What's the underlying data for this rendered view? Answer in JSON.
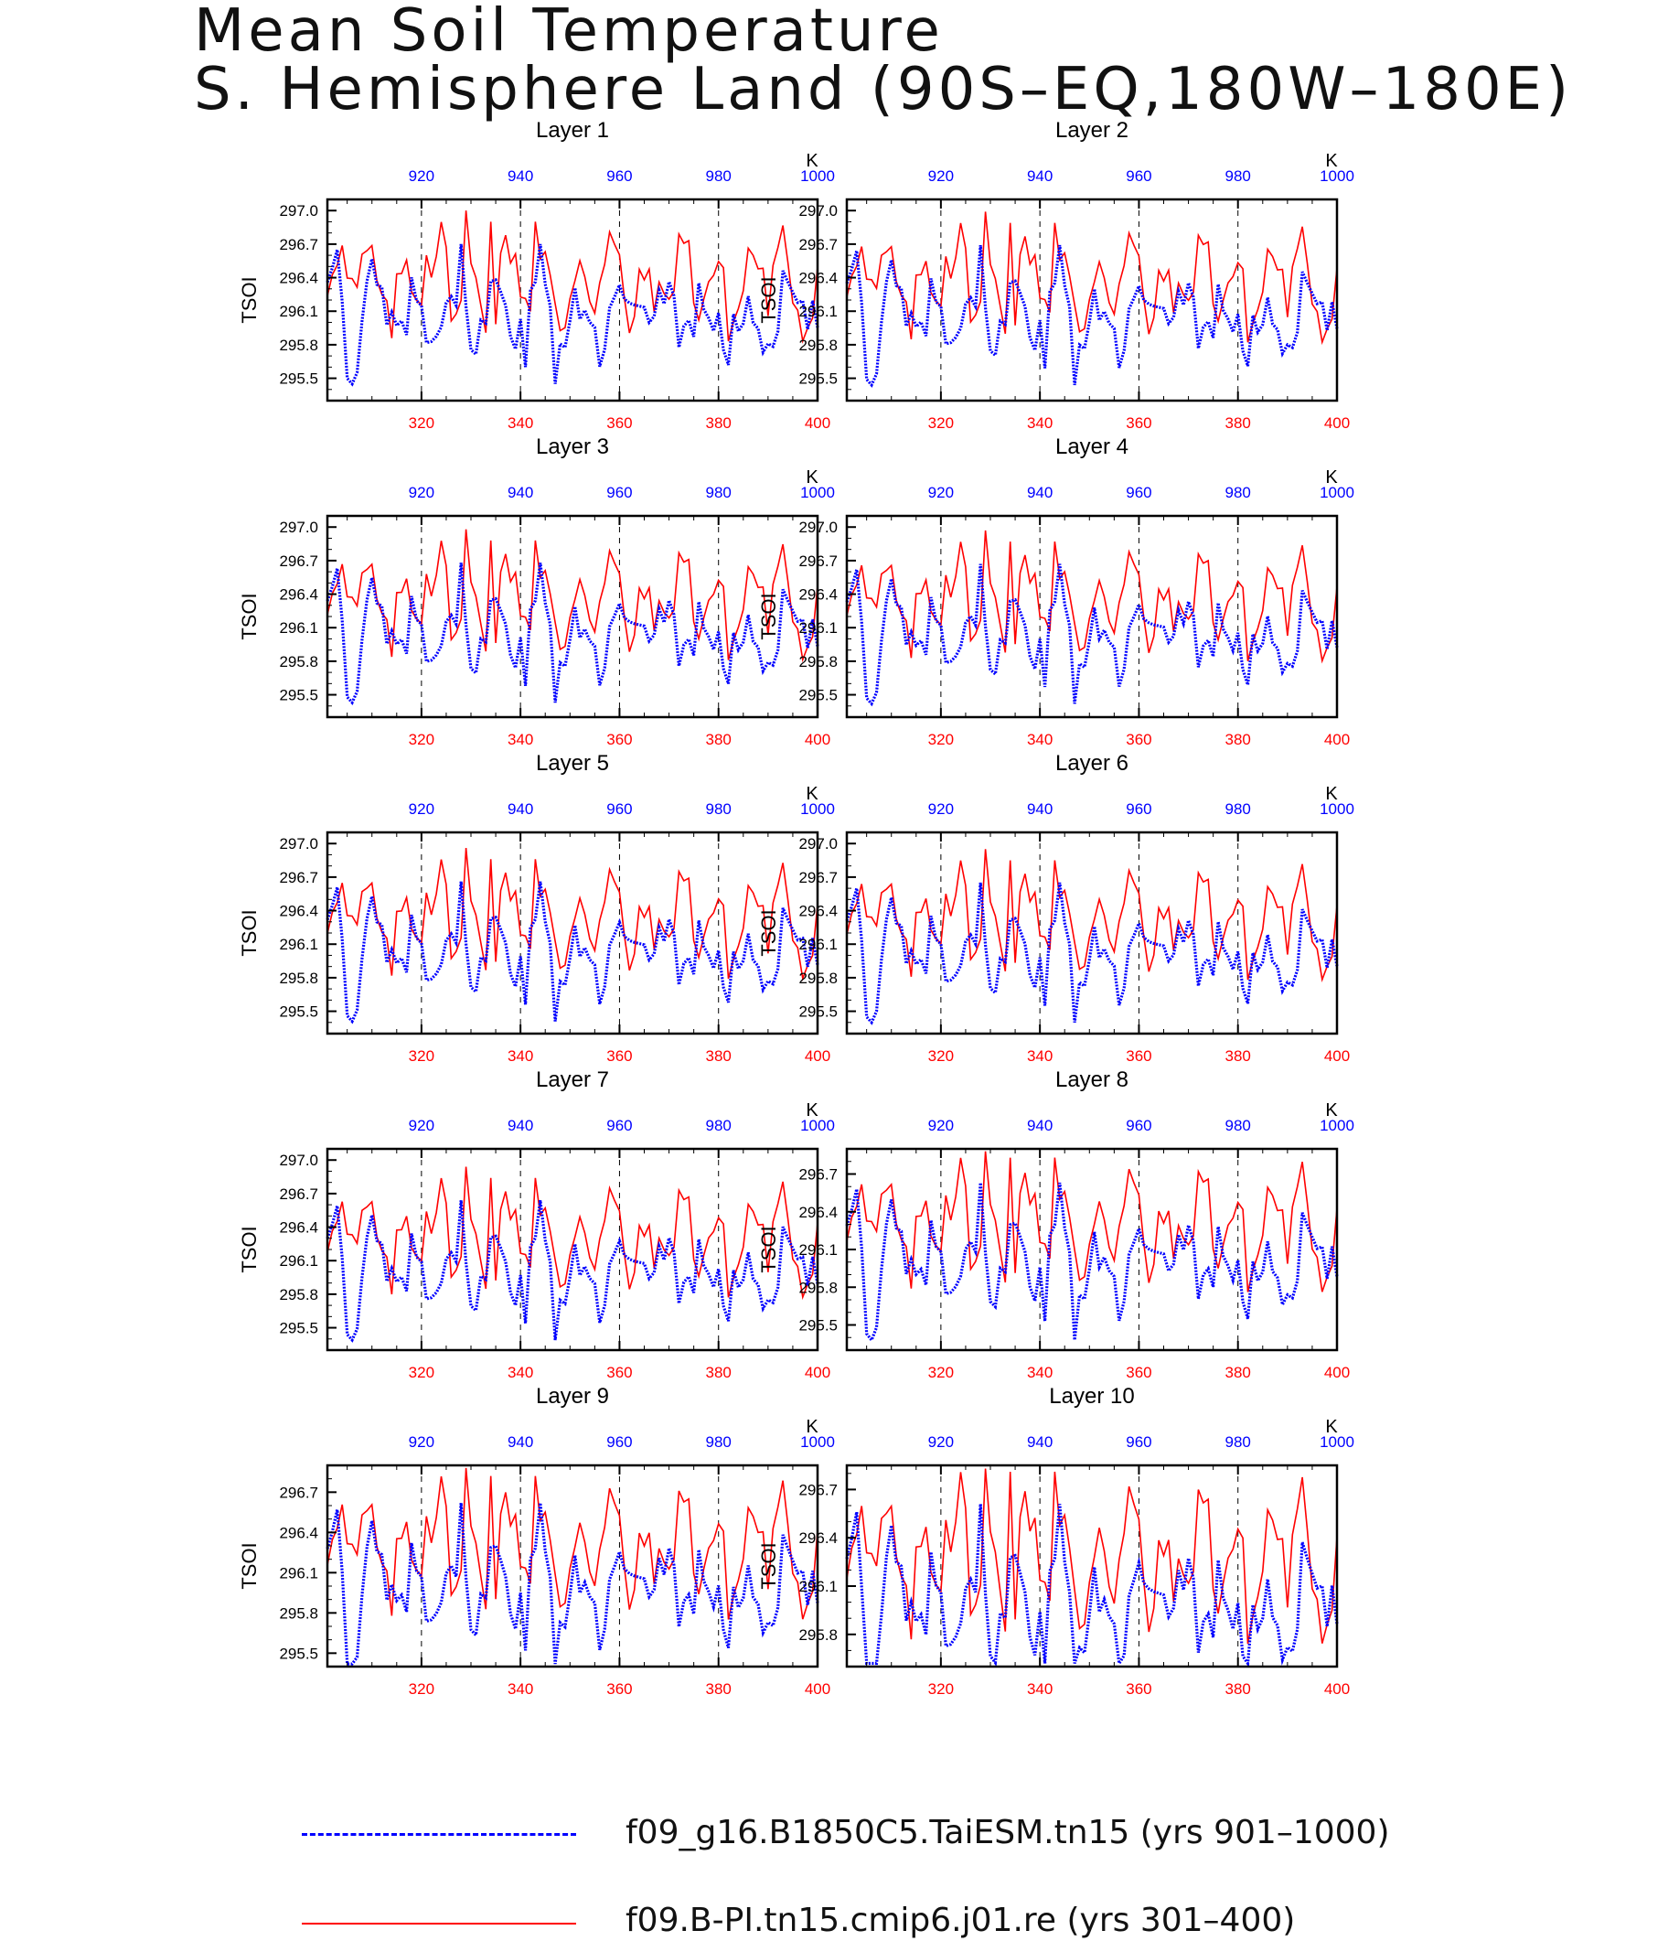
{
  "title": {
    "line1": "Mean Soil Temperature",
    "line2": "S. Hemisphere Land (90S–EQ,180W–180E)"
  },
  "legend": [
    {
      "label": "f09_g16.B1850C5.TaiESM.tn15 (yrs 901–1000)",
      "color": "#0000ff",
      "style": "dashed"
    },
    {
      "label": "f09.B-PI.tn15.cmip6.j01.re (yrs 301–400)",
      "color": "#ff0000",
      "style": "solid"
    }
  ],
  "chart_data": [
    {
      "type": "line",
      "title": "Layer 1",
      "ylabel": "TSOI",
      "ylim": [
        295.3,
        297.1
      ],
      "yticks": [
        "295.5",
        "295.8",
        "296.1",
        "296.4",
        "296.7",
        "297.0"
      ],
      "x_bottom_ticks": [
        "320",
        "340",
        "360",
        "380",
        "400"
      ],
      "x_top_ticks": [
        "920",
        "940",
        "960",
        "980",
        "1000"
      ],
      "x_top_unit": "K",
      "xlim_bottom": [
        301,
        400
      ],
      "xlim_top": [
        901,
        1000
      ],
      "series": [
        {
          "color": "#ff0000"
        },
        {
          "color": "#0000ff"
        }
      ]
    },
    {
      "type": "line",
      "title": "Layer 2",
      "ylabel": "TSOI",
      "ylim": [
        295.3,
        297.1
      ],
      "yticks": [
        "295.5",
        "295.8",
        "296.1",
        "296.4",
        "296.7",
        "297.0"
      ],
      "x_bottom_ticks": [
        "320",
        "340",
        "360",
        "380",
        "400"
      ],
      "x_top_ticks": [
        "920",
        "940",
        "960",
        "980",
        "1000"
      ],
      "x_top_unit": "K",
      "xlim_bottom": [
        301,
        400
      ],
      "xlim_top": [
        901,
        1000
      ],
      "series": [
        {
          "color": "#ff0000"
        },
        {
          "color": "#0000ff"
        }
      ]
    },
    {
      "type": "line",
      "title": "Layer 3",
      "ylabel": "TSOI",
      "ylim": [
        295.3,
        297.1
      ],
      "yticks": [
        "295.5",
        "295.8",
        "296.1",
        "296.4",
        "296.7",
        "297.0"
      ],
      "x_bottom_ticks": [
        "320",
        "340",
        "360",
        "380",
        "400"
      ],
      "x_top_ticks": [
        "920",
        "940",
        "960",
        "980",
        "1000"
      ],
      "x_top_unit": "K",
      "xlim_bottom": [
        301,
        400
      ],
      "xlim_top": [
        901,
        1000
      ],
      "series": [
        {
          "color": "#ff0000"
        },
        {
          "color": "#0000ff"
        }
      ]
    },
    {
      "type": "line",
      "title": "Layer 4",
      "ylabel": "TSOI",
      "ylim": [
        295.3,
        297.1
      ],
      "yticks": [
        "295.5",
        "295.8",
        "296.1",
        "296.4",
        "296.7",
        "297.0"
      ],
      "x_bottom_ticks": [
        "320",
        "340",
        "360",
        "380",
        "400"
      ],
      "x_top_ticks": [
        "920",
        "940",
        "960",
        "980",
        "1000"
      ],
      "x_top_unit": "K",
      "xlim_bottom": [
        301,
        400
      ],
      "xlim_top": [
        901,
        1000
      ],
      "series": [
        {
          "color": "#ff0000"
        },
        {
          "color": "#0000ff"
        }
      ]
    },
    {
      "type": "line",
      "title": "Layer 5",
      "ylabel": "TSOI",
      "ylim": [
        295.3,
        297.1
      ],
      "yticks": [
        "295.5",
        "295.8",
        "296.1",
        "296.4",
        "296.7",
        "297.0"
      ],
      "x_bottom_ticks": [
        "320",
        "340",
        "360",
        "380",
        "400"
      ],
      "x_top_ticks": [
        "920",
        "940",
        "960",
        "980",
        "1000"
      ],
      "x_top_unit": "K",
      "xlim_bottom": [
        301,
        400
      ],
      "xlim_top": [
        901,
        1000
      ],
      "series": [
        {
          "color": "#ff0000"
        },
        {
          "color": "#0000ff"
        }
      ]
    },
    {
      "type": "line",
      "title": "Layer 6",
      "ylabel": "TSOI",
      "ylim": [
        295.3,
        297.1
      ],
      "yticks": [
        "295.5",
        "295.8",
        "296.1",
        "296.4",
        "296.7",
        "297.0"
      ],
      "x_bottom_ticks": [
        "320",
        "340",
        "360",
        "380",
        "400"
      ],
      "x_top_ticks": [
        "920",
        "940",
        "960",
        "980",
        "1000"
      ],
      "x_top_unit": "K",
      "xlim_bottom": [
        301,
        400
      ],
      "xlim_top": [
        901,
        1000
      ],
      "series": [
        {
          "color": "#ff0000"
        },
        {
          "color": "#0000ff"
        }
      ]
    },
    {
      "type": "line",
      "title": "Layer 7",
      "ylabel": "TSOI",
      "ylim": [
        295.3,
        297.1
      ],
      "yticks": [
        "295.5",
        "295.8",
        "296.1",
        "296.4",
        "296.7",
        "297.0"
      ],
      "x_bottom_ticks": [
        "320",
        "340",
        "360",
        "380",
        "400"
      ],
      "x_top_ticks": [
        "920",
        "940",
        "960",
        "980",
        "1000"
      ],
      "x_top_unit": "K",
      "xlim_bottom": [
        301,
        400
      ],
      "xlim_top": [
        901,
        1000
      ],
      "series": [
        {
          "color": "#ff0000"
        },
        {
          "color": "#0000ff"
        }
      ]
    },
    {
      "type": "line",
      "title": "Layer 8",
      "ylabel": "TSOI",
      "ylim": [
        295.3,
        296.9
      ],
      "yticks": [
        "295.5",
        "295.8",
        "296.1",
        "296.4",
        "296.7"
      ],
      "x_bottom_ticks": [
        "320",
        "340",
        "360",
        "380",
        "400"
      ],
      "x_top_ticks": [
        "920",
        "940",
        "960",
        "980",
        "1000"
      ],
      "x_top_unit": "K",
      "xlim_bottom": [
        301,
        400
      ],
      "xlim_top": [
        901,
        1000
      ],
      "series": [
        {
          "color": "#ff0000"
        },
        {
          "color": "#0000ff"
        }
      ]
    },
    {
      "type": "line",
      "title": "Layer 9",
      "ylabel": "TSOI",
      "ylim": [
        295.4,
        296.9
      ],
      "yticks": [
        "295.5",
        "295.8",
        "296.1",
        "296.4",
        "296.7"
      ],
      "x_bottom_ticks": [
        "320",
        "340",
        "360",
        "380",
        "400"
      ],
      "x_top_ticks": [
        "920",
        "940",
        "960",
        "980",
        "1000"
      ],
      "x_top_unit": "K",
      "xlim_bottom": [
        301,
        400
      ],
      "xlim_top": [
        901,
        1000
      ],
      "series": [
        {
          "color": "#ff0000"
        },
        {
          "color": "#0000ff"
        }
      ]
    },
    {
      "type": "line",
      "title": "Layer 10",
      "ylabel": "TSOI",
      "ylim": [
        295.6,
        296.85
      ],
      "yticks": [
        "295.8",
        "296.1",
        "296.4",
        "296.7"
      ],
      "x_bottom_ticks": [
        "320",
        "340",
        "360",
        "380",
        "400"
      ],
      "x_top_ticks": [
        "920",
        "940",
        "960",
        "980",
        "1000"
      ],
      "x_top_unit": "K",
      "xlim_bottom": [
        301,
        400
      ],
      "xlim_top": [
        901,
        1000
      ],
      "series": [
        {
          "color": "#ff0000"
        },
        {
          "color": "#0000ff"
        }
      ]
    }
  ]
}
